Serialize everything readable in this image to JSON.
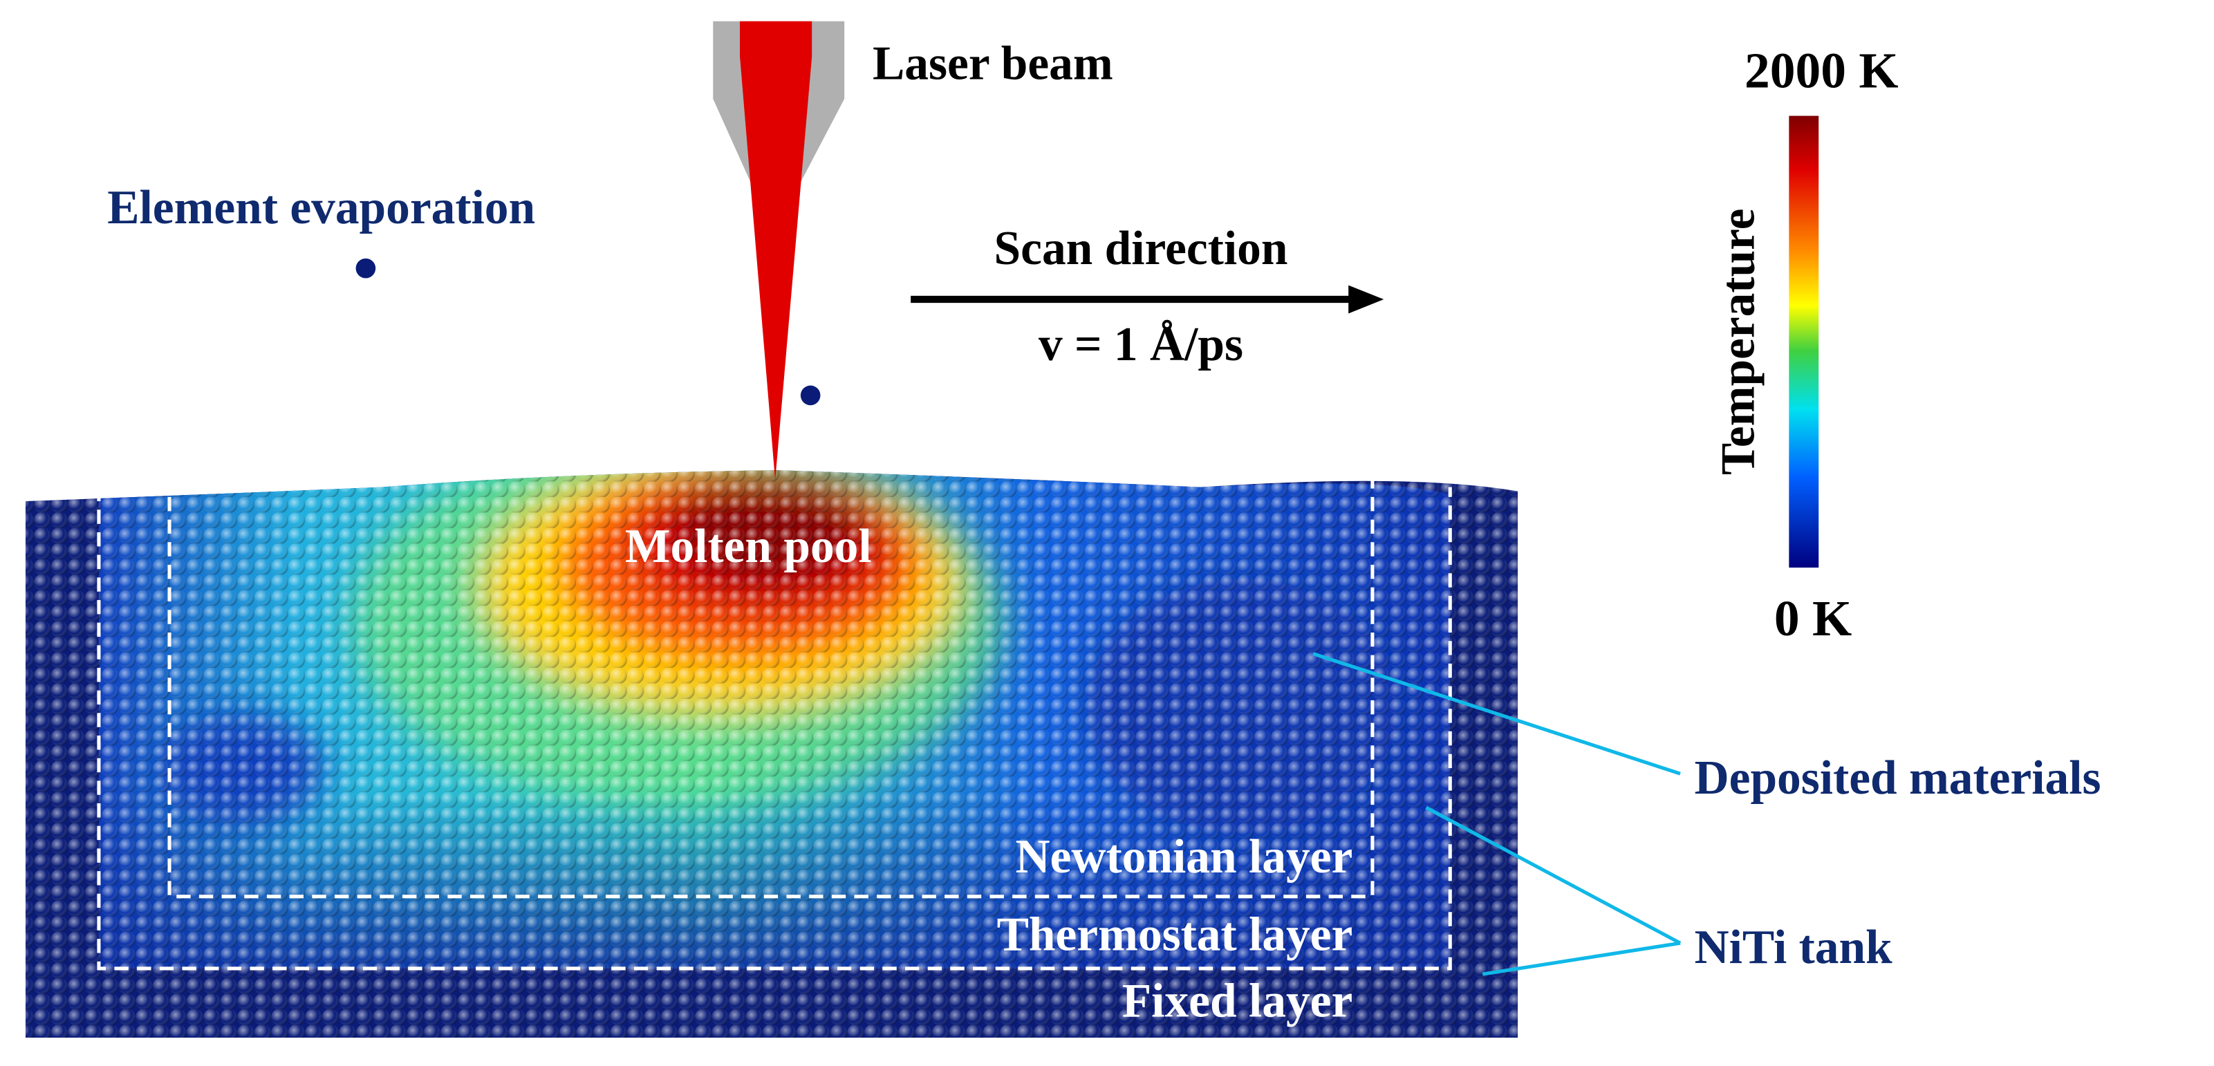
{
  "laser": {
    "label": "Laser beam"
  },
  "evaporation": {
    "label": "Element evaporation"
  },
  "scan": {
    "label": "Scan direction",
    "velocity": "v = 1 Å/ps"
  },
  "regions": {
    "molten_pool": "Molten pool",
    "newtonian": "Newtonian layer",
    "thermostat": "Thermostat layer",
    "fixed": "Fixed layer"
  },
  "callouts": {
    "deposited": "Deposited materials",
    "tank": "NiTi tank"
  },
  "colorbar": {
    "title": "Temperature",
    "max_label": "2000 K",
    "min_label": "0 K"
  }
}
